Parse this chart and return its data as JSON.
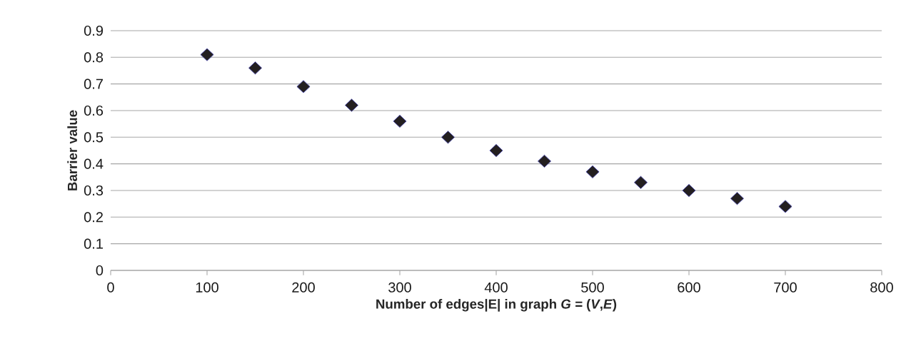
{
  "chart_data": {
    "type": "scatter",
    "xlabel": "Number of edges|E| in graph *G =* (*V*,*E*)",
    "ylabel": "Barrier value",
    "x": [
      100,
      150,
      200,
      250,
      300,
      350,
      400,
      450,
      500,
      550,
      600,
      650,
      700
    ],
    "values": [
      0.81,
      0.76,
      0.69,
      0.62,
      0.56,
      0.5,
      0.45,
      0.41,
      0.37,
      0.33,
      0.3,
      0.27,
      0.24
    ],
    "color": "#231f20",
    "marker": "diamond",
    "grid": "y",
    "xlim": [
      0,
      800
    ],
    "xticks": [
      0,
      100,
      200,
      300,
      400,
      500,
      600,
      700,
      800
    ],
    "ylim": [
      0,
      0.9
    ],
    "yticks": [
      0,
      0.1,
      0.2,
      0.3,
      0.4,
      0.5,
      0.6,
      0.7,
      0.8,
      0.9
    ]
  }
}
